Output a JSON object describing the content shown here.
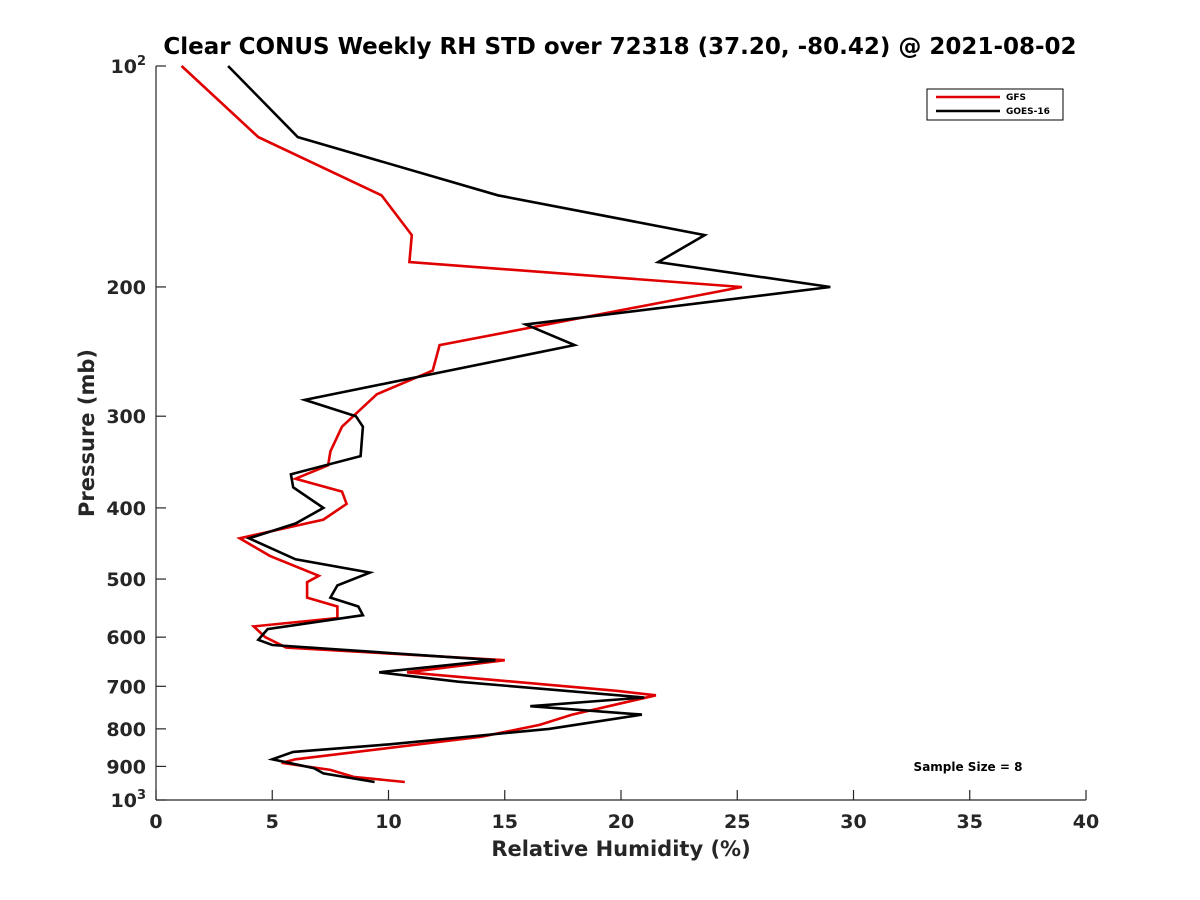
{
  "chart_data": {
    "type": "line",
    "title": "Clear CONUS Weekly RH STD over 72318 (37.20, -80.42) @ 2021-08-02",
    "xlabel": "Relative Humidity (%)",
    "ylabel": "Pressure (mb)",
    "xlim": [
      0,
      40
    ],
    "ylim": [
      100,
      1000
    ],
    "y_scale": "log",
    "y_reversed": true,
    "x_ticks": [
      "0",
      "5",
      "10",
      "15",
      "20",
      "25",
      "30",
      "35",
      "40"
    ],
    "y_ticks": [
      {
        "value": 100,
        "base": "10",
        "exp": "2"
      },
      {
        "value": 200,
        "label": "200"
      },
      {
        "value": 300,
        "label": "300"
      },
      {
        "value": 400,
        "label": "400"
      },
      {
        "value": 500,
        "label": "500"
      },
      {
        "value": 600,
        "label": "600"
      },
      {
        "value": 700,
        "label": "700"
      },
      {
        "value": 800,
        "label": "800"
      },
      {
        "value": 900,
        "label": "900"
      },
      {
        "value": 1000,
        "base": "10",
        "exp": "3"
      }
    ],
    "grid": false,
    "legend_position": "top-right",
    "annotation": "Sample Size = 8",
    "series": [
      {
        "name": "GFS",
        "color": "#e00000",
        "points": [
          [
            1.1,
            100
          ],
          [
            4.4,
            125
          ],
          [
            9.7,
            150
          ],
          [
            11.0,
            170
          ],
          [
            10.9,
            185
          ],
          [
            25.2,
            200
          ],
          [
            12.2,
            240
          ],
          [
            11.9,
            260
          ],
          [
            9.5,
            280
          ],
          [
            8.0,
            310
          ],
          [
            7.5,
            335
          ],
          [
            7.4,
            350
          ],
          [
            6.0,
            365
          ],
          [
            8.0,
            380
          ],
          [
            8.2,
            395
          ],
          [
            7.2,
            415
          ],
          [
            3.6,
            440
          ],
          [
            4.9,
            465
          ],
          [
            7.0,
            495
          ],
          [
            6.5,
            505
          ],
          [
            6.5,
            530
          ],
          [
            7.8,
            545
          ],
          [
            7.8,
            565
          ],
          [
            4.2,
            580
          ],
          [
            4.7,
            600
          ],
          [
            5.6,
            620
          ],
          [
            15.0,
            645
          ],
          [
            10.8,
            670
          ],
          [
            19.8,
            710
          ],
          [
            21.5,
            720
          ],
          [
            17.9,
            765
          ],
          [
            16.5,
            790
          ],
          [
            14.0,
            820
          ],
          [
            6.0,
            880
          ],
          [
            5.4,
            890
          ],
          [
            7.5,
            910
          ],
          [
            8.5,
            930
          ],
          [
            10.7,
            945
          ]
        ]
      },
      {
        "name": "GOES-16",
        "color": "#000000",
        "points": [
          [
            3.1,
            100
          ],
          [
            6.1,
            125
          ],
          [
            14.7,
            150
          ],
          [
            23.6,
            170
          ],
          [
            21.6,
            185
          ],
          [
            29.0,
            200
          ],
          [
            15.9,
            225
          ],
          [
            18.0,
            240
          ],
          [
            6.4,
            285
          ],
          [
            8.6,
            300
          ],
          [
            8.9,
            310
          ],
          [
            8.8,
            340
          ],
          [
            5.8,
            360
          ],
          [
            5.9,
            375
          ],
          [
            7.2,
            400
          ],
          [
            6.0,
            420
          ],
          [
            4.0,
            440
          ],
          [
            6.0,
            470
          ],
          [
            9.2,
            490
          ],
          [
            7.8,
            510
          ],
          [
            7.5,
            530
          ],
          [
            8.7,
            545
          ],
          [
            8.9,
            560
          ],
          [
            4.8,
            585
          ],
          [
            4.4,
            605
          ],
          [
            5.0,
            615
          ],
          [
            14.6,
            645
          ],
          [
            9.6,
            670
          ],
          [
            13.0,
            690
          ],
          [
            21.0,
            725
          ],
          [
            16.1,
            745
          ],
          [
            20.9,
            765
          ],
          [
            16.9,
            800
          ],
          [
            10.0,
            840
          ],
          [
            5.9,
            860
          ],
          [
            5.0,
            880
          ],
          [
            6.8,
            905
          ],
          [
            7.2,
            920
          ],
          [
            9.4,
            945
          ]
        ]
      }
    ]
  }
}
